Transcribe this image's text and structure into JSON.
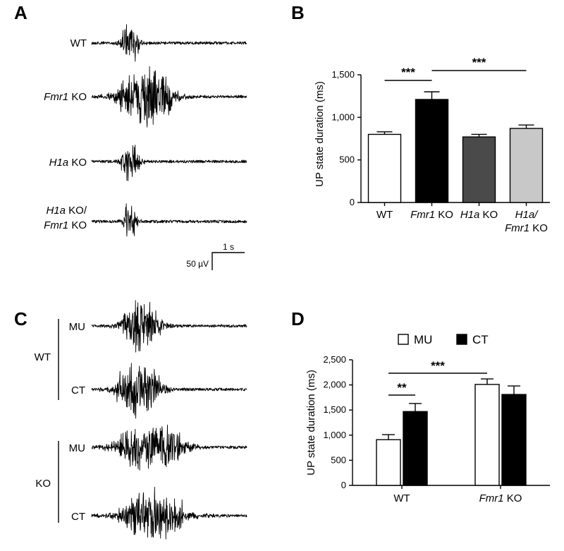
{
  "panels": {
    "a": "A",
    "b": "B",
    "c": "C",
    "d": "D"
  },
  "panel_a": {
    "traces": [
      {
        "label": "WT",
        "burst": "short"
      },
      {
        "label_italic": "Fmr1",
        "label_rest": " KO",
        "burst": "long"
      },
      {
        "label_italic": "H1a",
        "label_rest": " KO",
        "burst": "short"
      },
      {
        "label_italic": "H1a",
        "label_rest": " KO/",
        "label_line2_italic": "Fmr1",
        "label_line2_rest": " KO",
        "burst": "narrow"
      }
    ],
    "scale_bar": {
      "time": "1 s",
      "voltage": "50 µV"
    }
  },
  "panel_c": {
    "groups": [
      {
        "label": "WT",
        "traces": [
          {
            "label": "MU"
          },
          {
            "label": "CT"
          }
        ]
      },
      {
        "label": "KO",
        "traces": [
          {
            "label": "MU"
          },
          {
            "label": "CT"
          }
        ]
      }
    ]
  },
  "chart_data": [
    {
      "panel": "B",
      "type": "bar",
      "categories": [
        {
          "italic": "",
          "rest": "WT"
        },
        {
          "italic": "Fmr1",
          "rest": " KO"
        },
        {
          "italic": "H1a",
          "rest": " KO"
        },
        {
          "italic": "H1a/",
          "rest": "",
          "line2_italic": "Fmr1",
          "line2_rest": " KO"
        }
      ],
      "values": [
        800,
        1210,
        770,
        870
      ],
      "errors": [
        30,
        90,
        30,
        40
      ],
      "colors": [
        "#ffffff",
        "#000000",
        "#4a4a4a",
        "#c8c8c8"
      ],
      "ylabel": "UP state duration (ms)",
      "ylim": [
        0,
        1500
      ],
      "yticks": [
        0,
        500,
        1000,
        1500
      ],
      "ytick_labels": [
        "0",
        "500",
        "1,000",
        "1,500"
      ],
      "significance": [
        {
          "from": 0,
          "to": 1,
          "label": "***"
        },
        {
          "from": 1,
          "to": 3,
          "label": "***"
        }
      ]
    },
    {
      "panel": "D",
      "type": "bar",
      "categories": [
        {
          "italic": "",
          "rest": "WT"
        },
        {
          "italic": "Fmr1",
          "rest": " KO"
        }
      ],
      "series": [
        {
          "name": "MU",
          "values": [
            910,
            2010
          ],
          "errors": [
            100,
            110
          ],
          "color": "#ffffff"
        },
        {
          "name": "CT",
          "values": [
            1470,
            1810
          ],
          "errors": [
            160,
            170
          ],
          "color": "#000000"
        }
      ],
      "ylabel": "UP state duration (ms)",
      "ylim": [
        0,
        2500
      ],
      "yticks": [
        0,
        500,
        1000,
        1500,
        2000,
        2500
      ],
      "ytick_labels": [
        "0",
        "500",
        "1,000",
        "1,500",
        "2,000",
        "2,500"
      ],
      "legend_placement": "top",
      "significance": [
        {
          "from": "WT-MU",
          "to": "WT-CT",
          "label": "**"
        },
        {
          "from": "WT-MU",
          "to": "KO-MU",
          "label": "***"
        }
      ]
    }
  ]
}
